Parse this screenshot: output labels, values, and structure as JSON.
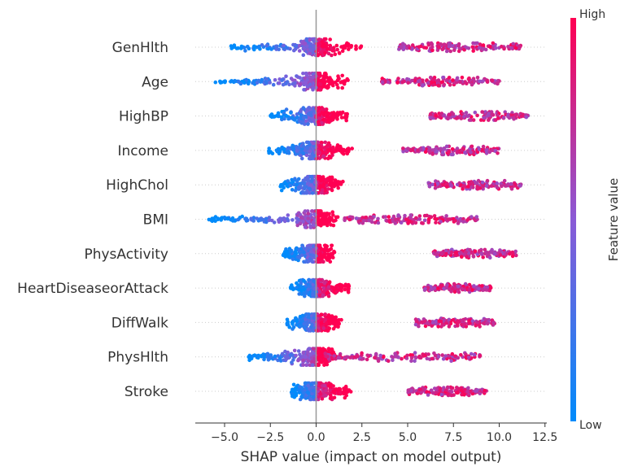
{
  "chart_data": {
    "type": "scatter",
    "subtype": "shap-beeswarm",
    "title": "",
    "xlabel": "SHAP value (impact on model output)",
    "xlim": [
      -6.6,
      12.6
    ],
    "xticks": [
      -5.0,
      -2.5,
      0.0,
      2.5,
      5.0,
      7.5,
      10.0,
      12.5
    ],
    "xtick_labels": [
      "−5.0",
      "−2.5",
      "0.0",
      "2.5",
      "5.0",
      "7.5",
      "10.0",
      "12.5"
    ],
    "features": [
      {
        "name": "GenHlth",
        "min": -4.8,
        "max": 11.2,
        "low_cluster": [
          -4.8,
          2.5
        ],
        "high_cluster": [
          4.5,
          11.2
        ]
      },
      {
        "name": "Age",
        "min": -5.5,
        "max": 10.0,
        "low_cluster": [
          -5.5,
          1.8
        ],
        "high_cluster": [
          3.5,
          10.0
        ]
      },
      {
        "name": "HighBP",
        "min": -2.5,
        "max": 11.6,
        "low_cluster": [
          -2.5,
          1.7
        ],
        "high_cluster": [
          6.2,
          11.6
        ]
      },
      {
        "name": "Income",
        "min": -2.6,
        "max": 10.0,
        "low_cluster": [
          -2.6,
          2.0
        ],
        "high_cluster": [
          4.7,
          10.0
        ]
      },
      {
        "name": "HighChol",
        "min": -2.0,
        "max": 11.2,
        "low_cluster": [
          -2.0,
          1.5
        ],
        "high_cluster": [
          6.1,
          11.2
        ]
      },
      {
        "name": "BMI",
        "min": -5.9,
        "max": 8.8,
        "low_cluster": [
          -5.9,
          1.5
        ],
        "high_cluster": [
          1.5,
          8.8
        ]
      },
      {
        "name": "PhysActivity",
        "min": -1.8,
        "max": 11.0,
        "low_cluster": [
          -1.8,
          1.0
        ],
        "high_cluster": [
          6.3,
          11.0
        ]
      },
      {
        "name": "HeartDiseaseorAttack",
        "min": -1.4,
        "max": 9.6,
        "low_cluster": [
          -1.4,
          1.8
        ],
        "high_cluster": [
          5.9,
          9.6
        ]
      },
      {
        "name": "DiffWalk",
        "min": -1.6,
        "max": 9.8,
        "low_cluster": [
          -1.6,
          1.4
        ],
        "high_cluster": [
          5.4,
          9.8
        ]
      },
      {
        "name": "PhysHlth",
        "min": -3.8,
        "max": 9.0,
        "low_cluster": [
          -3.8,
          1.0
        ],
        "high_cluster": [
          0.5,
          9.0
        ]
      },
      {
        "name": "Stroke",
        "min": -1.4,
        "max": 9.3,
        "low_cluster": [
          -1.4,
          1.9
        ],
        "high_cluster": [
          5.0,
          9.3
        ]
      }
    ],
    "colorbar": {
      "title": "Feature value",
      "high_label": "High",
      "low_label": "Low",
      "low_color": "#008bfb",
      "mid_color": "#8a5ad6",
      "high_color": "#ff0052"
    },
    "grid": false,
    "legend": "right"
  }
}
